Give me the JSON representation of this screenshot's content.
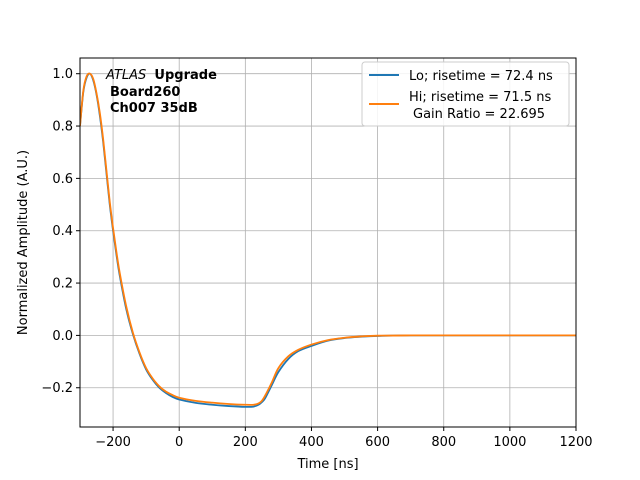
{
  "chart_data": {
    "type": "line",
    "title": "",
    "xlabel": "Time [ns]",
    "ylabel": "Normalized Amplitude (A.U.)",
    "xlim": [
      -300,
      1200
    ],
    "ylim": [
      -0.35,
      1.06
    ],
    "xticks": [
      -200,
      0,
      200,
      400,
      600,
      800,
      1000,
      1200
    ],
    "yticks": [
      -0.2,
      0.0,
      0.2,
      0.4,
      0.6,
      0.8,
      1.0
    ],
    "xtick_labels": [
      "−200",
      "0",
      "200",
      "400",
      "600",
      "800",
      "1000",
      "1200"
    ],
    "ytick_labels": [
      "−0.2",
      "0.0",
      "0.2",
      "0.4",
      "0.6",
      "0.8",
      "1.0"
    ],
    "grid": true,
    "legend_position": "top-right",
    "annotation": {
      "atlas": "ATLAS",
      "upgrade": "Upgrade",
      "board": "Board260",
      "channel": "Ch007 35dB"
    },
    "series": [
      {
        "name": "Lo; risetime = 72.4 ns",
        "color": "#1f77b4",
        "x": [
          -300,
          -290,
          -280,
          -270,
          -260,
          -250,
          -240,
          -230,
          -220,
          -210,
          -200,
          -190,
          -180,
          -160,
          -140,
          -120,
          -100,
          -80,
          -60,
          -40,
          -20,
          0,
          50,
          100,
          150,
          200,
          225,
          240,
          250,
          260,
          280,
          300,
          330,
          360,
          400,
          450,
          500,
          550,
          600,
          700,
          800,
          1000,
          1200
        ],
        "y": [
          0.8,
          0.93,
          0.985,
          1.0,
          0.975,
          0.92,
          0.84,
          0.74,
          0.62,
          0.5,
          0.4,
          0.31,
          0.23,
          0.1,
          0.005,
          -0.07,
          -0.13,
          -0.17,
          -0.2,
          -0.22,
          -0.235,
          -0.245,
          -0.258,
          -0.265,
          -0.27,
          -0.273,
          -0.272,
          -0.265,
          -0.255,
          -0.24,
          -0.19,
          -0.14,
          -0.09,
          -0.06,
          -0.04,
          -0.02,
          -0.01,
          -0.005,
          -0.002,
          0.0,
          0.0,
          0.0,
          0.0
        ]
      },
      {
        "name": "Hi; risetime = 71.5 ns",
        "name_line2": "Gain Ratio = 22.695",
        "color": "#ff7f0e",
        "x": [
          -300,
          -290,
          -280,
          -270,
          -260,
          -250,
          -240,
          -230,
          -220,
          -210,
          -200,
          -190,
          -180,
          -160,
          -140,
          -120,
          -100,
          -80,
          -60,
          -40,
          -20,
          0,
          50,
          100,
          150,
          200,
          225,
          240,
          250,
          260,
          280,
          300,
          330,
          360,
          400,
          450,
          500,
          550,
          600,
          700,
          800,
          1000,
          1200
        ],
        "y": [
          0.8,
          0.935,
          0.99,
          1.0,
          0.98,
          0.925,
          0.85,
          0.75,
          0.63,
          0.51,
          0.41,
          0.32,
          0.24,
          0.11,
          0.01,
          -0.065,
          -0.125,
          -0.165,
          -0.195,
          -0.215,
          -0.228,
          -0.238,
          -0.25,
          -0.257,
          -0.262,
          -0.265,
          -0.265,
          -0.26,
          -0.25,
          -0.23,
          -0.18,
          -0.125,
          -0.08,
          -0.055,
          -0.035,
          -0.018,
          -0.009,
          -0.004,
          -0.001,
          0.0,
          0.0,
          0.0,
          0.0
        ]
      }
    ]
  }
}
